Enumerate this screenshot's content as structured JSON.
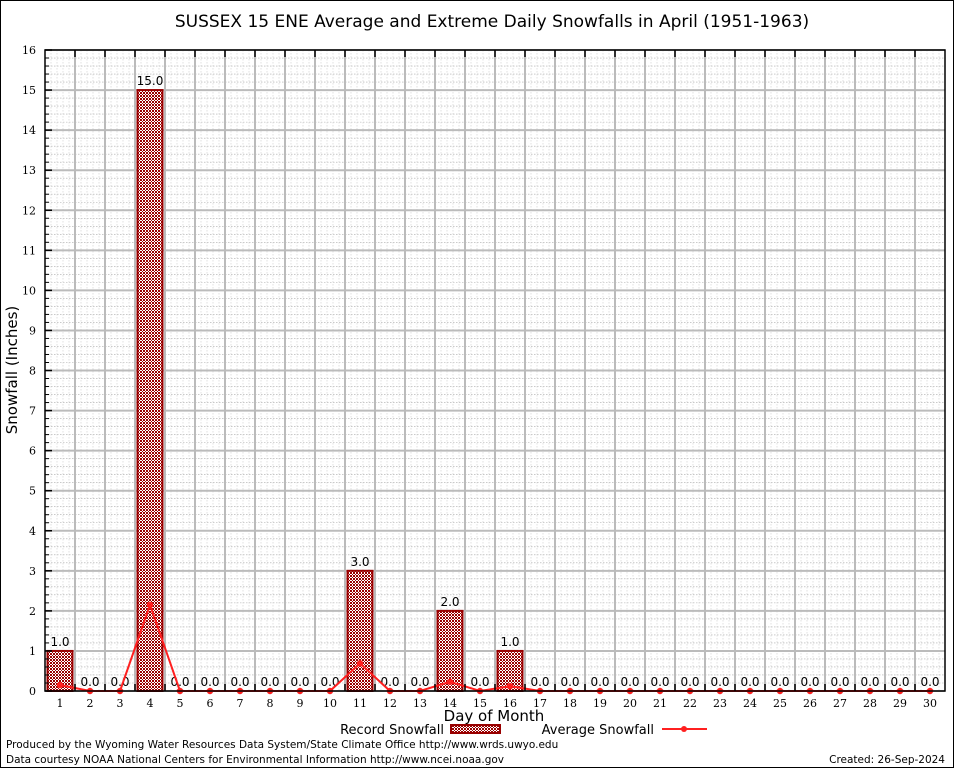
{
  "chart_data": {
    "type": "bar",
    "title": "SUSSEX 15 ENE Average and Extreme Daily Snowfalls in April (1951-1963)",
    "xlabel": "Day of Month",
    "ylabel": "Snowfall (Inches)",
    "ylim": [
      0,
      16
    ],
    "xlim": [
      0.5,
      30.5
    ],
    "grid": true,
    "legend_placement": "bottom",
    "categories": [
      1,
      2,
      3,
      4,
      5,
      6,
      7,
      8,
      9,
      10,
      11,
      12,
      13,
      14,
      15,
      16,
      17,
      18,
      19,
      20,
      21,
      22,
      23,
      24,
      25,
      26,
      27,
      28,
      29,
      30
    ],
    "yticks": [
      0,
      1,
      2,
      3,
      4,
      5,
      6,
      7,
      8,
      9,
      10,
      11,
      12,
      13,
      14,
      15,
      16
    ],
    "series": [
      {
        "name": "Record Snowfall",
        "type": "bar",
        "color": "#990000",
        "values": [
          1.0,
          0.0,
          0.0,
          15.0,
          0.0,
          0.0,
          0.0,
          0.0,
          0.0,
          0.0,
          3.0,
          0.0,
          0.0,
          2.0,
          0.0,
          1.0,
          0.0,
          0.0,
          0.0,
          0.0,
          0.0,
          0.0,
          0.0,
          0.0,
          0.0,
          0.0,
          0.0,
          0.0,
          0.0,
          0.0
        ],
        "labels": [
          "1.0",
          "0.0",
          "0.0",
          "15.0",
          "0.0",
          "0.0",
          "0.0",
          "0.0",
          "0.0",
          "0.0",
          "3.0",
          "0.0",
          "0.0",
          "2.0",
          "0.0",
          "1.0",
          "0.0",
          "0.0",
          "0.0",
          "0.0",
          "0.0",
          "0.0",
          "0.0",
          "0.0",
          "0.0",
          "0.0",
          "0.0",
          "0.0",
          "0.0",
          "0.0"
        ]
      },
      {
        "name": "Average Snowfall",
        "type": "line",
        "color": "#ff2020",
        "values": [
          0.15,
          0,
          0,
          2.15,
          0,
          0,
          0,
          0,
          0,
          0,
          0.69,
          0,
          0,
          0.23,
          0,
          0.12,
          0,
          0,
          0,
          0,
          0,
          0,
          0,
          0,
          0,
          0,
          0,
          0,
          0,
          0
        ]
      }
    ]
  },
  "footer": {
    "produced": "Produced by the Wyoming Water Resources Data System/State Climate Office http://www.wrds.uwyo.edu",
    "courtesy": "Data courtesy NOAA National Centers for Environmental Information http://www.ncei.noaa.gov",
    "created": "Created: 26-Sep-2024"
  }
}
